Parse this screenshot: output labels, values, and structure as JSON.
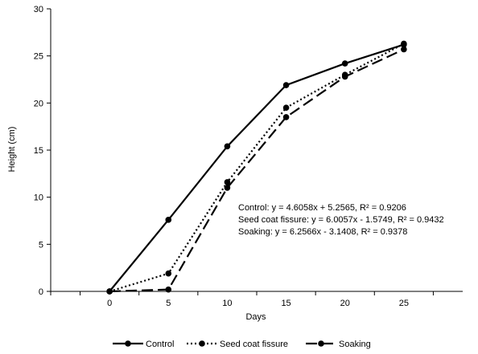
{
  "chart_data": {
    "type": "line",
    "title": "",
    "xlabel": "Days",
    "ylabel": "Height (cm)",
    "xlim": [
      -5,
      30
    ],
    "ylim": [
      0,
      30
    ],
    "x_ticks": [
      0,
      5,
      10,
      15,
      20,
      25
    ],
    "y_ticks": [
      0,
      5,
      10,
      15,
      20,
      25,
      30
    ],
    "x_tick_labels": [
      "0",
      "5",
      "10",
      "15",
      "20",
      "25"
    ],
    "y_tick_labels": [
      "0",
      "5",
      "10",
      "15",
      "20",
      "25",
      "30"
    ],
    "grid": false,
    "legend_position": "bottom",
    "x": [
      0,
      5,
      10,
      15,
      20,
      25
    ],
    "series": [
      {
        "name": "Control",
        "values": [
          0,
          7.6,
          15.4,
          21.9,
          24.2,
          26.2
        ],
        "line_style": "solid",
        "color": "#000000"
      },
      {
        "name": "Seed coat fissure",
        "values": [
          0,
          1.9,
          11.6,
          19.5,
          23.0,
          26.3
        ],
        "line_style": "dotted",
        "color": "#000000"
      },
      {
        "name": "Soaking",
        "values": [
          0,
          0.2,
          11.0,
          18.5,
          22.8,
          25.7
        ],
        "line_style": "dashed",
        "color": "#000000"
      }
    ],
    "annotations": [
      "Control: y = 4.6058x + 5.2565, R² = 0.9206",
      "Seed coat fissure: y = 6.0057x - 1.5749, R² = 0.9432",
      "Soaking: y = 6.2566x - 3.1408, R² = 0.9378"
    ]
  }
}
